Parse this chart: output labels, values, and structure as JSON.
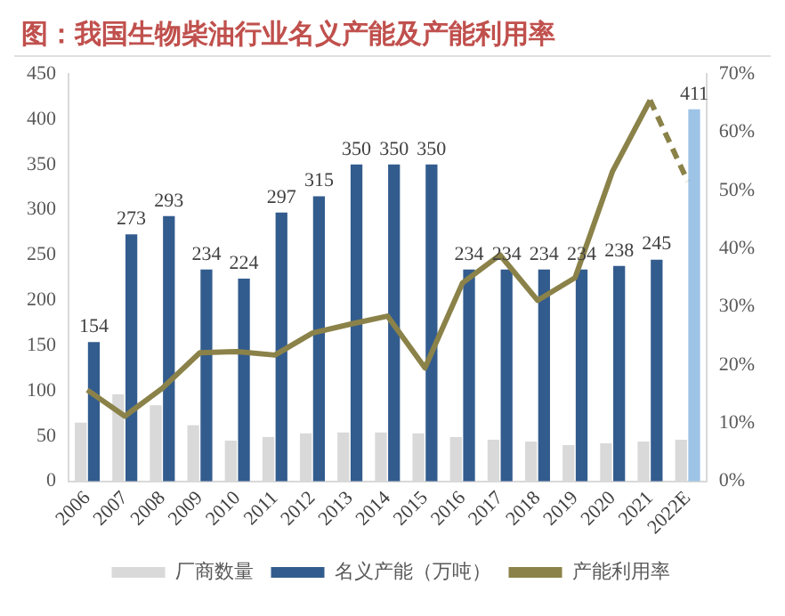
{
  "chart_data": {
    "type": "bar",
    "title": "图：我国生物柴油行业名义产能及产能利用率",
    "categories": [
      "2006",
      "2007",
      "2008",
      "2009",
      "2010",
      "2011",
      "2012",
      "2013",
      "2014",
      "2015",
      "2016",
      "2017",
      "2018",
      "2019",
      "2020",
      "2021",
      "2022E"
    ],
    "series": [
      {
        "name": "厂商数量",
        "color": "#d9d9d9",
        "values": [
          65,
          96,
          84,
          62,
          45,
          49,
          53,
          54,
          54,
          53,
          49,
          46,
          44,
          40,
          42,
          44,
          46
        ]
      },
      {
        "name": "名义产能（万吨）",
        "color": "#335c8e",
        "colors": [
          "#335c8e",
          "#335c8e",
          "#335c8e",
          "#335c8e",
          "#335c8e",
          "#335c8e",
          "#335c8e",
          "#335c8e",
          "#335c8e",
          "#335c8e",
          "#335c8e",
          "#335c8e",
          "#335c8e",
          "#335c8e",
          "#335c8e",
          "#335c8e",
          "#9dc3e6"
        ],
        "values": [
          154,
          273,
          293,
          234,
          224,
          297,
          315,
          350,
          350,
          350,
          234,
          234,
          234,
          234,
          238,
          245,
          411
        ],
        "value_labels": [
          "154",
          "273",
          "293",
          "234",
          "224",
          "297",
          "315",
          "350",
          "350",
          "350",
          "234",
          "234",
          "234",
          "234",
          "238",
          "245",
          "411"
        ]
      },
      {
        "name": "产能利用率",
        "type": "line",
        "axis": "y2",
        "color": "#8b8249",
        "line_style": "solid",
        "values": [
          15.7,
          11.2,
          16,
          22.1,
          22.3,
          21.7,
          25.5,
          27,
          28.4,
          19.5,
          34.1,
          38.9,
          31.1,
          35,
          53.3,
          65.5,
          null
        ]
      },
      {
        "type": "line",
        "axis": "y2",
        "color": "#8b8249",
        "line_style": "dashed",
        "values": [
          null,
          null,
          null,
          null,
          null,
          null,
          null,
          null,
          null,
          null,
          null,
          null,
          null,
          null,
          null,
          65.5,
          51.6
        ]
      }
    ],
    "ylim": [
      0,
      450
    ],
    "yticks": [
      0,
      50,
      100,
      150,
      200,
      250,
      300,
      350,
      400,
      450
    ],
    "y2lim": [
      0,
      70
    ],
    "y2ticks": [
      {
        "value": 0,
        "label": "0%"
      },
      {
        "value": 10,
        "label": "10%"
      },
      {
        "value": 20,
        "label": "20%"
      },
      {
        "value": 30,
        "label": "30%"
      },
      {
        "value": 40,
        "label": "40%"
      },
      {
        "value": 50,
        "label": "50%"
      },
      {
        "value": 60,
        "label": "60%"
      },
      {
        "value": 70,
        "label": "70%"
      }
    ],
    "grid": false,
    "legend": "bottom",
    "marker": "none"
  }
}
